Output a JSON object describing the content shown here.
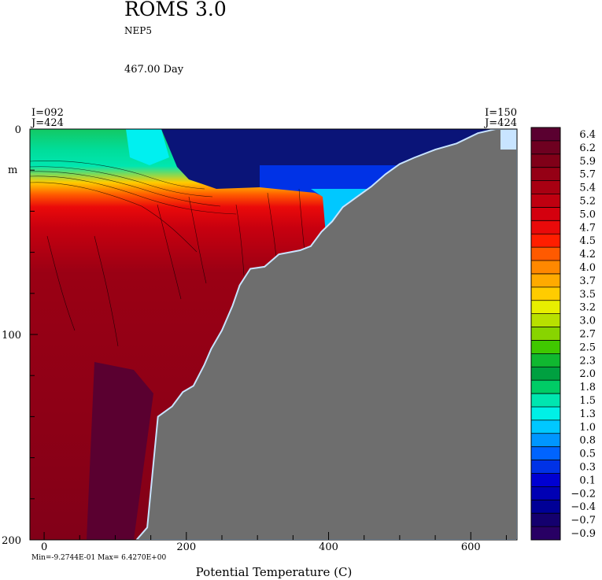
{
  "header": {
    "model": "ROMS 3.0",
    "config": "NEP5",
    "time_label": "467.00 Day"
  },
  "section": {
    "left_i": "I=092",
    "left_j": "J=424",
    "right_i": "I=150",
    "right_j": "J=424"
  },
  "axes": {
    "y_unit": "m",
    "x_label": "Potential Temperature (C)",
    "x_ticks": [
      "0",
      "200",
      "400",
      "600"
    ],
    "y_ticks": [
      "0",
      "100",
      "200"
    ]
  },
  "stats": {
    "min_max": "Min=-9.2744E-01   Max= 6.4270E+00"
  },
  "chart_data": {
    "type": "heatmap",
    "title": "ROMS 3.0",
    "subtitle": "NEP5",
    "xlabel": "Potential Temperature (C)",
    "ylabel": "m",
    "xlim": [
      -20,
      665
    ],
    "ylim": [
      200,
      0
    ],
    "x_ticks": [
      0,
      200,
      400,
      600
    ],
    "y_ticks": [
      0,
      100,
      200
    ],
    "min": -0.92744,
    "max": 6.427,
    "colorbar": {
      "labels": [
        "6.4",
        "6.2",
        "5.9",
        "5.7",
        "5.4",
        "5.2",
        "5.0",
        "4.7",
        "4.5",
        "4.2",
        "4.0",
        "3.7",
        "3.5",
        "3.2",
        "3.0",
        "2.7",
        "2.5",
        "2.3",
        "2.0",
        "1.8",
        "1.5",
        "1.3",
        "1.0",
        "0.8",
        "0.5",
        "0.3",
        "0.1",
        "−0.2",
        "−0.4",
        "−0.7",
        "−0.9"
      ],
      "colors": [
        "#5a0030",
        "#6e0020",
        "#800018",
        "#950015",
        "#a80012",
        "#bf0010",
        "#d4000e",
        "#ea0a0a",
        "#ff1e00",
        "#ff5a00",
        "#ff8800",
        "#ffaa00",
        "#ffcc00",
        "#e8ee00",
        "#b8e000",
        "#88d400",
        "#40c800",
        "#10b830",
        "#00a040",
        "#00cc66",
        "#00e6b0",
        "#00f0e6",
        "#00c8ff",
        "#0096ff",
        "#0064ff",
        "#0032e6",
        "#0000d2",
        "#0000b4",
        "#000096",
        "#14006e",
        "#280064"
      ]
    },
    "bathymetry": {
      "x": [
        130,
        145,
        160,
        180,
        195,
        210,
        225,
        235,
        250,
        265,
        275,
        290,
        310,
        330,
        345,
        360,
        375,
        390,
        405,
        420,
        440,
        460,
        480,
        500,
        520,
        550,
        580,
        610,
        635,
        665
      ],
      "depth": [
        200,
        194,
        140,
        135,
        128,
        125,
        115,
        107,
        98,
        86,
        76,
        68,
        67,
        61,
        60,
        59,
        57,
        50,
        45,
        38,
        33,
        28,
        22,
        17,
        14,
        10,
        7,
        2,
        0,
        0
      ]
    }
  }
}
